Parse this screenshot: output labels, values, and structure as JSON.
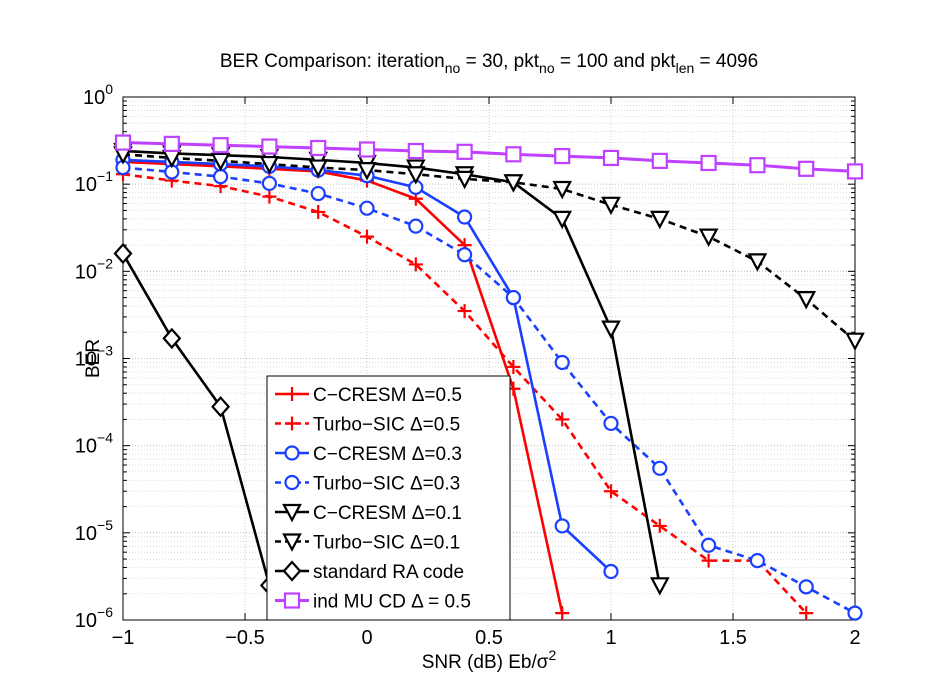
{
  "chart_data": {
    "type": "line",
    "title": {
      "parts": [
        {
          "t": "BER Comparison: iteration"
        },
        {
          "t": "no",
          "sub": true
        },
        {
          "t": " = 30, pkt"
        },
        {
          "t": "no",
          "sub": true
        },
        {
          "t": " = 100 and pkt"
        },
        {
          "t": "len",
          "sub": true
        },
        {
          "t": " = 4096"
        }
      ]
    },
    "xlabel": {
      "parts": [
        {
          "t": "SNR (dB) Eb/σ"
        },
        {
          "t": "2",
          "sup": true
        }
      ]
    },
    "ylabel": "BER",
    "xlim": [
      -1,
      2
    ],
    "ylim": [
      1e-06,
      1
    ],
    "yscale": "log",
    "grid": true,
    "legend_position": "bottom-left",
    "xticks": [
      {
        "v": -1,
        "label": "−1"
      },
      {
        "v": -0.5,
        "label": "−0.5"
      },
      {
        "v": 0,
        "label": "0"
      },
      {
        "v": 0.5,
        "label": "0.5"
      },
      {
        "v": 1,
        "label": "1"
      },
      {
        "v": 1.5,
        "label": "1.5"
      },
      {
        "v": 2,
        "label": "2"
      }
    ],
    "yticks": [
      {
        "v": 1,
        "base": "10",
        "exp": "0"
      },
      {
        "v": 0.1,
        "base": "10",
        "exp": "−1"
      },
      {
        "v": 0.01,
        "base": "10",
        "exp": "−2"
      },
      {
        "v": 0.001,
        "base": "10",
        "exp": "−3"
      },
      {
        "v": 0.0001,
        "base": "10",
        "exp": "−4"
      },
      {
        "v": 1e-05,
        "base": "10",
        "exp": "−5"
      },
      {
        "v": 1e-06,
        "base": "10",
        "exp": "−6"
      }
    ],
    "series": [
      {
        "name": "C−CRESM Δ=0.5",
        "color": "#ff0000",
        "dash": false,
        "marker": "plus",
        "points": [
          [
            -1,
            0.18
          ],
          [
            -0.8,
            0.17
          ],
          [
            -0.6,
            0.16
          ],
          [
            -0.4,
            0.15
          ],
          [
            -0.2,
            0.14
          ],
          [
            0,
            0.11
          ],
          [
            0.2,
            0.068
          ],
          [
            0.4,
            0.02
          ],
          [
            0.6,
            0.00045
          ],
          [
            0.8,
            1.2e-06
          ]
        ]
      },
      {
        "name": "Turbo−SIC Δ=0.5",
        "color": "#ff0000",
        "dash": true,
        "marker": "plus",
        "points": [
          [
            -1,
            0.13
          ],
          [
            -0.8,
            0.11
          ],
          [
            -0.6,
            0.095
          ],
          [
            -0.4,
            0.072
          ],
          [
            -0.2,
            0.048
          ],
          [
            0,
            0.025
          ],
          [
            0.2,
            0.012
          ],
          [
            0.4,
            0.0035
          ],
          [
            0.6,
            0.0008
          ],
          [
            0.8,
            0.0002
          ],
          [
            1,
            3e-05
          ],
          [
            1.2,
            1.2e-05
          ],
          [
            1.4,
            4.8e-06
          ],
          [
            1.6,
            4.8e-06
          ],
          [
            1.8,
            1.2e-06
          ]
        ]
      },
      {
        "name": "C−CRESM Δ=0.3",
        "color": "#1a3fff",
        "dash": false,
        "marker": "circle",
        "points": [
          [
            -1,
            0.19
          ],
          [
            -0.8,
            0.18
          ],
          [
            -0.6,
            0.17
          ],
          [
            -0.4,
            0.16
          ],
          [
            -0.2,
            0.145
          ],
          [
            0,
            0.125
          ],
          [
            0.2,
            0.092
          ],
          [
            0.4,
            0.042
          ],
          [
            0.6,
            0.005
          ],
          [
            0.8,
            1.2e-05
          ],
          [
            1,
            3.6e-06
          ]
        ]
      },
      {
        "name": "Turbo−SIC Δ=0.3",
        "color": "#1a3fff",
        "dash": true,
        "marker": "circle",
        "points": [
          [
            -1,
            0.155
          ],
          [
            -0.8,
            0.138
          ],
          [
            -0.6,
            0.122
          ],
          [
            -0.4,
            0.102
          ],
          [
            -0.2,
            0.078
          ],
          [
            0,
            0.053
          ],
          [
            0.2,
            0.033
          ],
          [
            0.4,
            0.0155
          ],
          [
            0.6,
            0.005
          ],
          [
            0.8,
            0.0009
          ],
          [
            1,
            0.00018
          ],
          [
            1.2,
            5.5e-05
          ],
          [
            1.4,
            7.2e-06
          ],
          [
            1.6,
            4.8e-06
          ],
          [
            1.8,
            2.4e-06
          ],
          [
            2,
            1.2e-06
          ]
        ]
      },
      {
        "name": "C−CRESM Δ=0.1",
        "color": "#000000",
        "dash": false,
        "marker": "triangle-down",
        "points": [
          [
            -1,
            0.24
          ],
          [
            -0.8,
            0.225
          ],
          [
            -0.6,
            0.215
          ],
          [
            -0.4,
            0.205
          ],
          [
            -0.2,
            0.19
          ],
          [
            0,
            0.175
          ],
          [
            0.2,
            0.155
          ],
          [
            0.4,
            0.13
          ],
          [
            0.6,
            0.105
          ],
          [
            0.8,
            0.04
          ],
          [
            1,
            0.0022
          ],
          [
            1.2,
            2.5e-06
          ]
        ]
      },
      {
        "name": "Turbo−SIC Δ=0.1",
        "color": "#000000",
        "dash": true,
        "marker": "triangle-down",
        "points": [
          [
            -1,
            0.22
          ],
          [
            -0.8,
            0.2
          ],
          [
            -0.6,
            0.185
          ],
          [
            -0.4,
            0.17
          ],
          [
            -0.2,
            0.155
          ],
          [
            0,
            0.145
          ],
          [
            0.2,
            0.13
          ],
          [
            0.4,
            0.115
          ],
          [
            0.6,
            0.105
          ],
          [
            0.8,
            0.088
          ],
          [
            1,
            0.058
          ],
          [
            1.2,
            0.04
          ],
          [
            1.4,
            0.025
          ],
          [
            1.6,
            0.013
          ],
          [
            1.8,
            0.0048
          ],
          [
            2,
            0.0016
          ]
        ]
      },
      {
        "name": "standard RA code",
        "color": "#000000",
        "dash": false,
        "marker": "diamond",
        "points": [
          [
            -1,
            0.016
          ],
          [
            -0.8,
            0.0017
          ],
          [
            -0.6,
            0.00028
          ],
          [
            -0.4,
            2.5e-06
          ]
        ]
      },
      {
        "name": "ind MU CD Δ = 0.5",
        "color": "#bf40ff",
        "dash": false,
        "marker": "square",
        "points": [
          [
            -1,
            0.3
          ],
          [
            -0.8,
            0.29
          ],
          [
            -0.6,
            0.28
          ],
          [
            -0.4,
            0.27
          ],
          [
            -0.2,
            0.26
          ],
          [
            0,
            0.25
          ],
          [
            0.2,
            0.24
          ],
          [
            0.4,
            0.235
          ],
          [
            0.6,
            0.22
          ],
          [
            0.8,
            0.21
          ],
          [
            1,
            0.2
          ],
          [
            1.2,
            0.185
          ],
          [
            1.4,
            0.175
          ],
          [
            1.6,
            0.165
          ],
          [
            1.8,
            0.15
          ],
          [
            2,
            0.14
          ]
        ]
      }
    ]
  }
}
